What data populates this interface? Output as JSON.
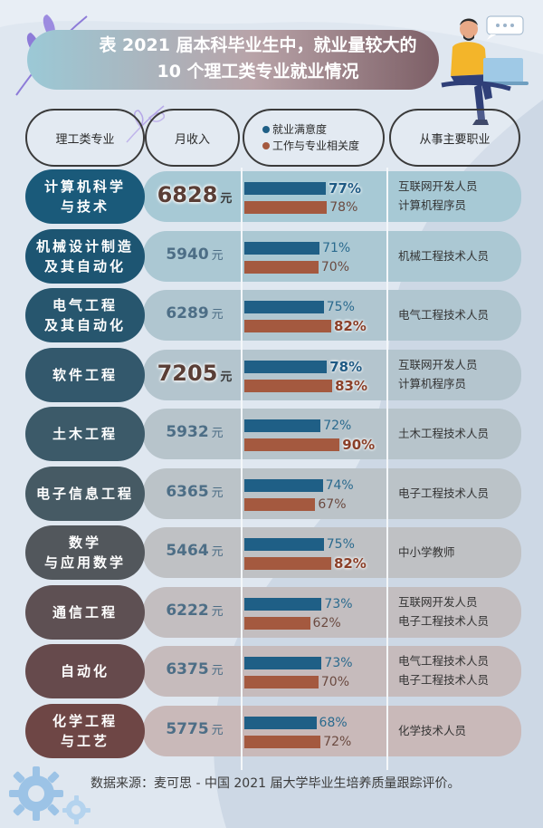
{
  "title": {
    "line1": "表 2021 届本科毕业生中，就业量较大的",
    "line2": "10 个理工类专业就业情况"
  },
  "headers": {
    "major": "理工类专业",
    "income": "月收入",
    "legend": [
      {
        "label": "就业满意度",
        "color": "#1f5f86"
      },
      {
        "label": "工作与专业相关度",
        "color": "#a4593f"
      }
    ],
    "jobs": "从事主要职业"
  },
  "income_unit": "元",
  "source": "数据来源：麦可思 - 中国 2021 届大学毕业生培养质量跟踪评价。",
  "chart_data": {
    "type": "table",
    "columns": [
      "理工类专业",
      "月收入",
      "就业满意度",
      "工作与专业相关度",
      "从事主要职业"
    ],
    "rows": [
      {
        "major": [
          "计算机科学",
          "与技术"
        ],
        "income": "6828",
        "satisfaction": 77,
        "relevance": 78,
        "jobs": [
          "互联网开发人员",
          "计算机程序员"
        ],
        "pill_color": "#1a5a7a",
        "row_color": "#a7c9d5",
        "highlight_income": true,
        "highlight_sat": true,
        "highlight_rel": false
      },
      {
        "major": [
          "机械设计制造",
          "及其自动化"
        ],
        "income": "5940",
        "satisfaction": 71,
        "relevance": 70,
        "jobs": [
          "机械工程技术人员"
        ],
        "pill_color": "#1d5572",
        "row_color": "#abc8d3",
        "highlight_income": false,
        "highlight_sat": false,
        "highlight_rel": false
      },
      {
        "major": [
          "电气工程",
          "及其自动化"
        ],
        "income": "6289",
        "satisfaction": 75,
        "relevance": 82,
        "jobs": [
          "电气工程技术人员"
        ],
        "pill_color": "#27566e",
        "row_color": "#b0c6d0",
        "highlight_income": false,
        "highlight_sat": false,
        "highlight_rel": true
      },
      {
        "major": [
          "软件工程"
        ],
        "income": "7205",
        "satisfaction": 78,
        "relevance": 83,
        "jobs": [
          "互联网开发人员",
          "计算机程序员"
        ],
        "pill_color": "#33586c",
        "row_color": "#b4c5ce",
        "highlight_income": true,
        "highlight_sat": true,
        "highlight_rel": true
      },
      {
        "major": [
          "土木工程"
        ],
        "income": "5932",
        "satisfaction": 72,
        "relevance": 90,
        "jobs": [
          "土木工程技术人员"
        ],
        "pill_color": "#3c5a69",
        "row_color": "#b7c4cb",
        "highlight_income": false,
        "highlight_sat": false,
        "highlight_rel": true
      },
      {
        "major": [
          "电子信息工程"
        ],
        "income": "6365",
        "satisfaction": 74,
        "relevance": 67,
        "jobs": [
          "电子工程技术人员"
        ],
        "pill_color": "#465a64",
        "row_color": "#bbc3c8",
        "highlight_income": false,
        "highlight_sat": false,
        "highlight_rel": false
      },
      {
        "major": [
          "数学",
          "与应用数学"
        ],
        "income": "5464",
        "satisfaction": 75,
        "relevance": 82,
        "jobs": [
          "中小学教师"
        ],
        "pill_color": "#52575c",
        "row_color": "#bfc1c4",
        "highlight_income": false,
        "highlight_sat": false,
        "highlight_rel": true
      },
      {
        "major": [
          "通信工程"
        ],
        "income": "6222",
        "satisfaction": 73,
        "relevance": 62,
        "jobs": [
          "互联网开发人员",
          "电子工程技术人员"
        ],
        "pill_color": "#5e5053",
        "row_color": "#c3bec0",
        "highlight_income": false,
        "highlight_sat": false,
        "highlight_rel": false
      },
      {
        "major": [
          "自动化"
        ],
        "income": "6375",
        "satisfaction": 73,
        "relevance": 70,
        "jobs": [
          "电气工程技术人员",
          "电子工程技术人员"
        ],
        "pill_color": "#664a4c",
        "row_color": "#c6bbbc",
        "highlight_income": false,
        "highlight_sat": false,
        "highlight_rel": false
      },
      {
        "major": [
          "化学工程",
          "与工艺"
        ],
        "income": "5775",
        "satisfaction": 68,
        "relevance": 72,
        "jobs": [
          "化学技术人员"
        ],
        "pill_color": "#6e4645",
        "row_color": "#c9b9b9",
        "highlight_income": false,
        "highlight_sat": false,
        "highlight_rel": false
      }
    ]
  }
}
